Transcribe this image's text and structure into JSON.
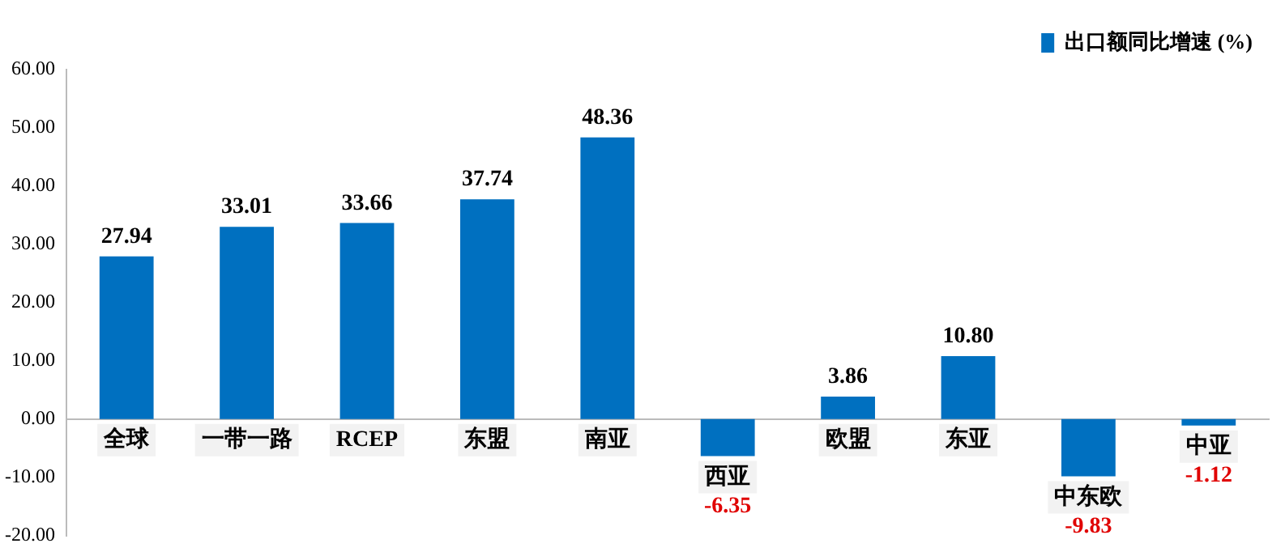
{
  "chart_data": {
    "type": "bar",
    "categories": [
      "全球",
      "一带一路",
      "RCEP",
      "东盟",
      "南亚",
      "西亚",
      "欧盟",
      "东亚",
      "中东欧",
      "中亚"
    ],
    "series": [
      {
        "name": "出口额同比增速 (%)",
        "color": "#0070c0",
        "values": [
          27.94,
          33.01,
          33.66,
          37.74,
          48.36,
          -6.35,
          3.86,
          10.8,
          -9.83,
          -1.12
        ],
        "value_labels": [
          "27.94",
          "33.01",
          "33.66",
          "37.74",
          "48.36",
          "-6.35",
          "3.86",
          "10.80",
          "-9.83",
          "-1.12"
        ]
      }
    ],
    "ylim": [
      -20,
      60
    ],
    "yticks": [
      {
        "value": -20,
        "label": "-20.00"
      },
      {
        "value": -10,
        "label": "-10.00"
      },
      {
        "value": 0,
        "label": "0.00"
      },
      {
        "value": 10,
        "label": "10.00"
      },
      {
        "value": 20,
        "label": "20.00"
      },
      {
        "value": 30,
        "label": "30.00"
      },
      {
        "value": 40,
        "label": "40.00"
      },
      {
        "value": 50,
        "label": "50.00"
      },
      {
        "value": 60,
        "label": "60.00"
      }
    ],
    "grid": false,
    "legend": "top right"
  }
}
